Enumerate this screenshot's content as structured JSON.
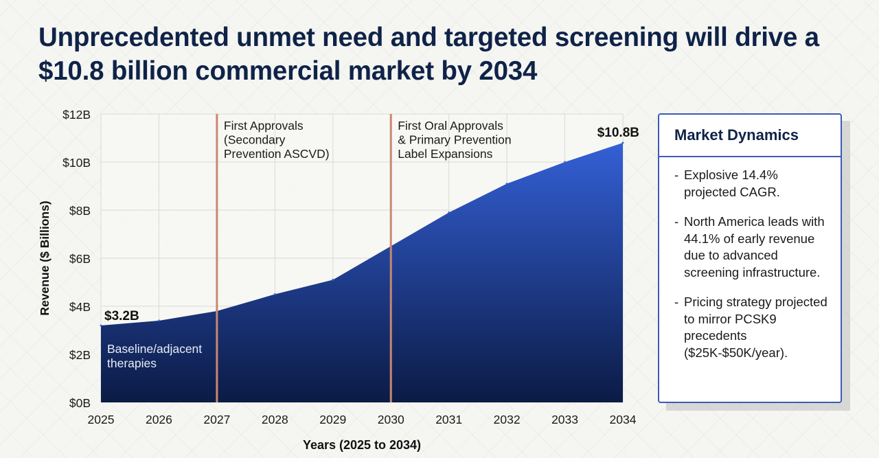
{
  "title": "Unprecedented unmet need and targeted screening will drive a $10.8 billion commercial market by 2034",
  "chart_data": {
    "type": "area",
    "x": [
      2025,
      2026,
      2027,
      2028,
      2029,
      2030,
      2031,
      2032,
      2033,
      2034
    ],
    "values": [
      3.2,
      3.4,
      3.8,
      4.5,
      5.1,
      6.5,
      7.9,
      9.1,
      10.0,
      10.8
    ],
    "ylim": [
      0,
      12
    ],
    "y_ticks": [
      0,
      2,
      4,
      6,
      8,
      10,
      12
    ],
    "y_tick_labels": [
      "$0B",
      "$2B",
      "$4B",
      "$6B",
      "$8B",
      "$10B",
      "$12B"
    ],
    "xlabel": "Years (2025 to 2034)",
    "ylabel": "Revenue ($ Billions)",
    "grid": true,
    "start_label": "$3.2B",
    "end_label": "$10.8B",
    "area_note": [
      "Baseline/adjacent",
      "therapies"
    ],
    "milestones": [
      {
        "year": 2027,
        "lines": [
          "First Approvals",
          "(Secondary",
          "Prevention ASCVD)"
        ]
      },
      {
        "year": 2030,
        "lines": [
          "First Oral Approvals",
          "& Primary Prevention",
          "Label Expansions"
        ]
      }
    ],
    "colors": {
      "area_top": "#3460d6",
      "area_bottom": "#0b1b45",
      "milestone": "#c98870",
      "grid": "#d9d9d6"
    }
  },
  "panel": {
    "title": "Market Dynamics",
    "bullets": [
      "Explosive 14.4% projected CAGR.",
      "North America leads with 44.1% of early revenue due to advanced screening infrastructure.",
      "Pricing strategy projected to mirror PCSK9 precedents ($25K-$50K/year)."
    ]
  }
}
